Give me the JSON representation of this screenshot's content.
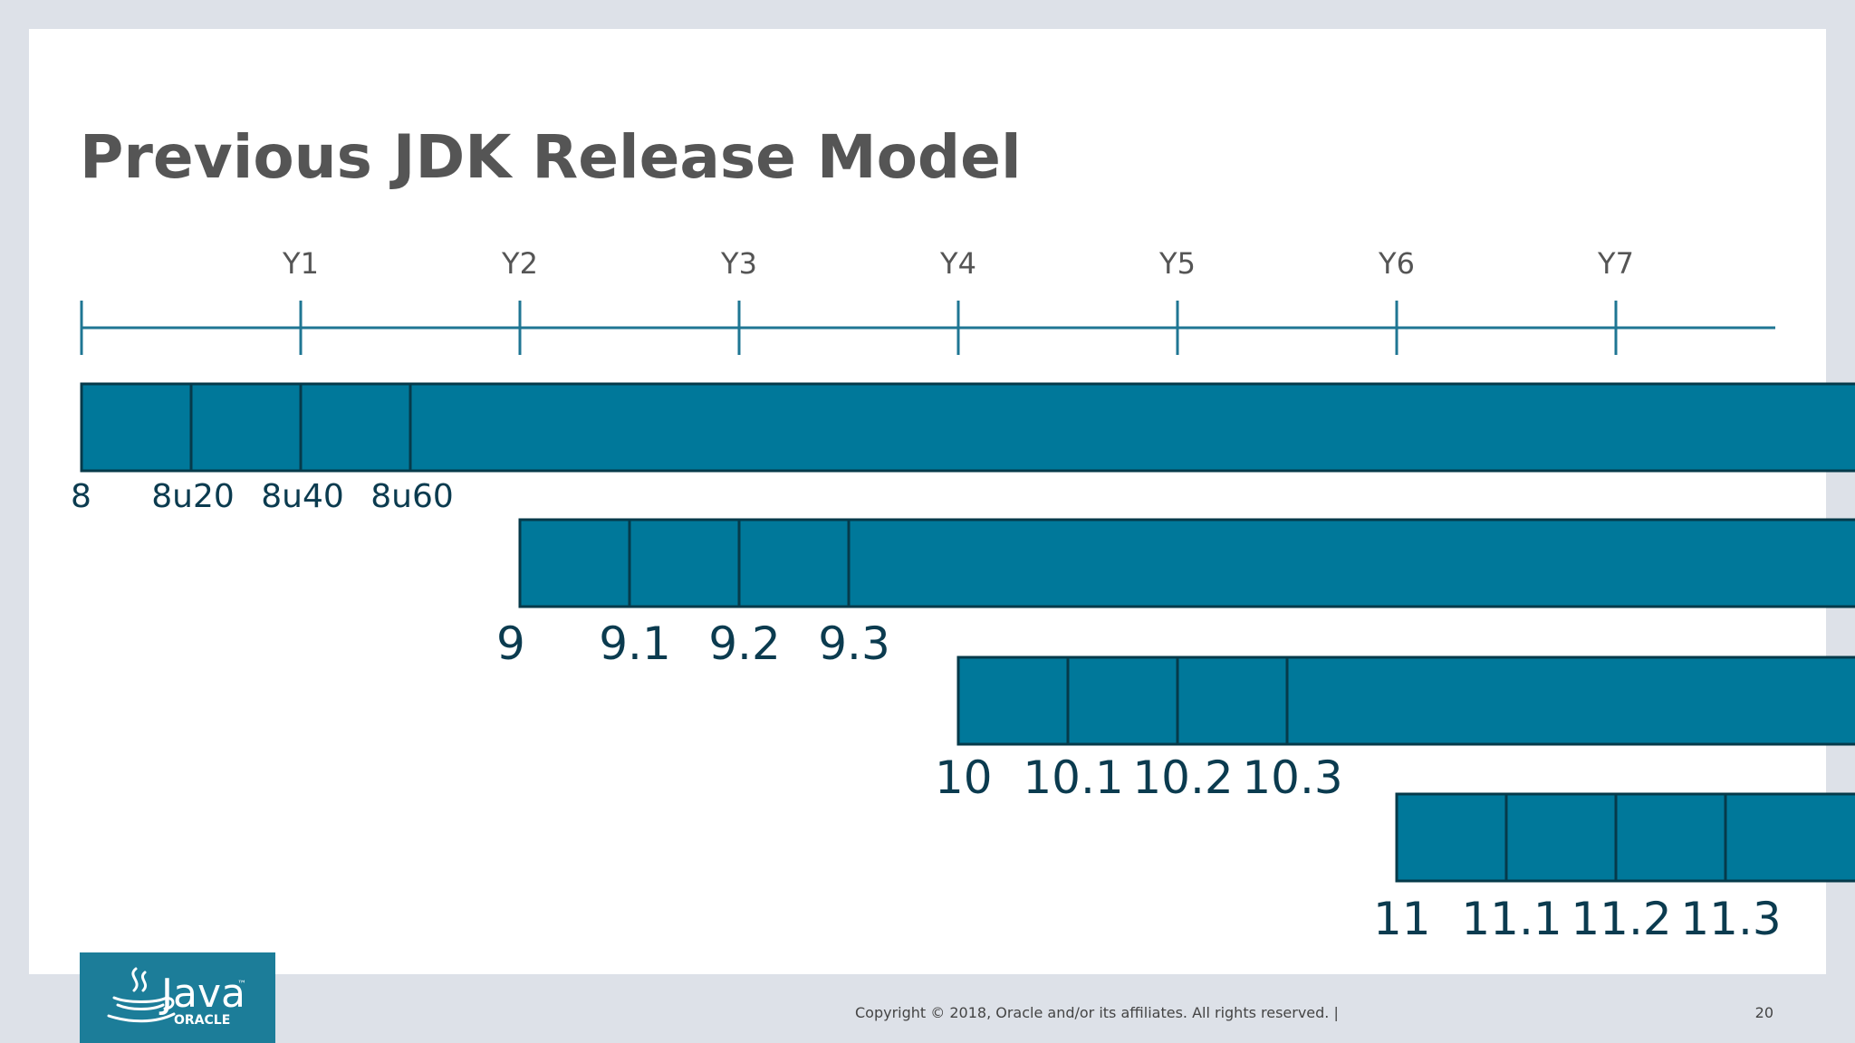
{
  "slide": {
    "title": "Previous JDK Release Model",
    "copyright": "Copyright © 2018, Oracle and/or its affiliates. All rights reserved.  |",
    "page_number": "20"
  },
  "logo": {
    "wordmark": "Java",
    "tm": "™",
    "company": "ORACLE"
  },
  "timeline": {
    "years": [
      "Y1",
      "Y2",
      "Y3",
      "Y4",
      "Y5",
      "Y6",
      "Y7"
    ]
  },
  "releases": [
    {
      "start_year": 0,
      "labels": [
        "8",
        "8u20",
        "8u40",
        "8u60"
      ]
    },
    {
      "start_year": 2,
      "labels": [
        "9",
        "9.1",
        "9.2",
        "9.3"
      ]
    },
    {
      "start_year": 4,
      "labels": [
        "10",
        "10.1",
        "10.2",
        "10.3"
      ]
    },
    {
      "start_year": 6,
      "labels": [
        "11",
        "11.1",
        "11.2",
        "11.3"
      ]
    }
  ],
  "colors": {
    "bar_fill": "#00789a",
    "bar_stroke": "#063a4a",
    "axis": "#1f7693",
    "label": "#0b3b4f",
    "title": "#555555",
    "year_label": "#555555",
    "logo_bg": "#1c7d99",
    "frame": "#dde1e8",
    "slide": "#ffffff"
  }
}
